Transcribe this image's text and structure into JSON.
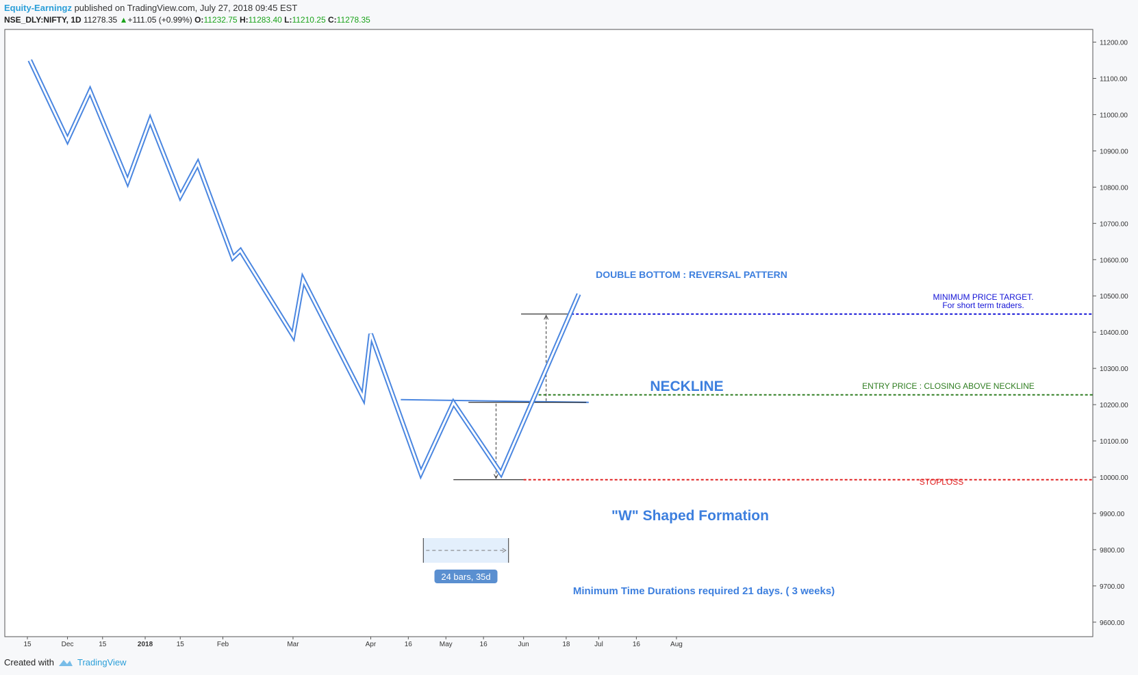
{
  "header": {
    "author": "Equity-Earningz",
    "published": "published on TradingView.com, July 27, 2018 09:45 EST",
    "symbol": "NSE_DLY:NIFTY, 1D",
    "last": "11278.35",
    "change": "+111.05 (+0.99%)",
    "o_label": "O:",
    "o_value": "11232.75",
    "h_label": "H:",
    "h_value": "11283.40",
    "l_label": "L:",
    "l_value": "11210.25",
    "c_label": "C:",
    "c_value": "11278.35"
  },
  "footer": {
    "created_with": "Created with",
    "brand": "TradingView"
  },
  "colors": {
    "line": "#4a86e0",
    "target": "#1414d6",
    "entry": "#2e7d20",
    "stoploss": "#e02020",
    "accent_text": "#3d7fde"
  },
  "annotations": {
    "title": "DOUBLE BOTTOM : REVERSAL PATTERN",
    "neckline": "NECKLINE",
    "target_line1": "MINIMUM PRICE TARGET.",
    "target_line2": "For short term traders.",
    "entry": "ENTRY PRICE : CLOSING ABOVE NECKLINE",
    "stoploss": "STOPLOSS",
    "formation": "\"W\" Shaped Formation",
    "range_badge": "24 bars, 35d",
    "duration": "Minimum Time Durations required 21 days. ( 3 weeks)"
  },
  "chart_data": {
    "type": "line",
    "y_ticks": [
      "11200.00",
      "11100.00",
      "11000.00",
      "10900.00",
      "10800.00",
      "10700.00",
      "10600.00",
      "10500.00",
      "10400.00",
      "10300.00",
      "10200.00",
      "10100.00",
      "10000.00",
      "9900.00",
      "9800.00",
      "9700.00",
      "9600.00"
    ],
    "ylim": [
      9560,
      11235
    ],
    "x_ticks": [
      "15",
      "Dec",
      "15",
      "2018",
      "15",
      "Feb",
      "Mar",
      "Apr",
      "16",
      "May",
      "16",
      "Jun",
      "18",
      "Jul",
      "16",
      "Aug"
    ],
    "x_tick_dates": [
      "2017-11-15",
      "2017-12-01",
      "2017-12-15",
      "2018-01-01",
      "2018-01-15",
      "2018-02-01",
      "2018-03-01",
      "2018-04-01",
      "2018-04-16",
      "2018-05-01",
      "2018-05-16",
      "2018-06-01",
      "2018-06-18",
      "2018-07-01",
      "2018-07-16",
      "2018-08-01"
    ],
    "series": [
      {
        "values": [
          [
            "2017-11-16",
            11150
          ],
          [
            "2017-12-01",
            10930
          ],
          [
            "2017-12-10",
            11065
          ],
          [
            "2017-12-25",
            10815
          ],
          [
            "2018-01-03",
            10985
          ],
          [
            "2018-01-15",
            10775
          ],
          [
            "2018-01-22",
            10865
          ],
          [
            "2018-02-05",
            10605
          ],
          [
            "2018-02-08",
            10625
          ],
          [
            "2018-03-01",
            10390
          ],
          [
            "2018-03-05",
            10545
          ],
          [
            "2018-03-29",
            10220
          ],
          [
            "2018-04-01",
            10395
          ],
          [
            "2018-04-21",
            10010
          ],
          [
            "2018-05-04",
            10205
          ],
          [
            "2018-05-23",
            10010
          ],
          [
            "2018-06-23",
            10505
          ]
        ]
      }
    ],
    "levels": [
      {
        "name": "MINIMUM PRICE TARGET.",
        "value": 10450
      },
      {
        "name": "ENTRY PRICE : CLOSING ABOVE NECKLINE",
        "value": 10227
      },
      {
        "name": "NECKLINE",
        "value": 10210
      },
      {
        "name": "STOPLOSS",
        "value": 9993
      }
    ],
    "date_range": {
      "start": "2018-04-22",
      "end": "2018-05-26",
      "label": "24 bars, 35d"
    }
  }
}
